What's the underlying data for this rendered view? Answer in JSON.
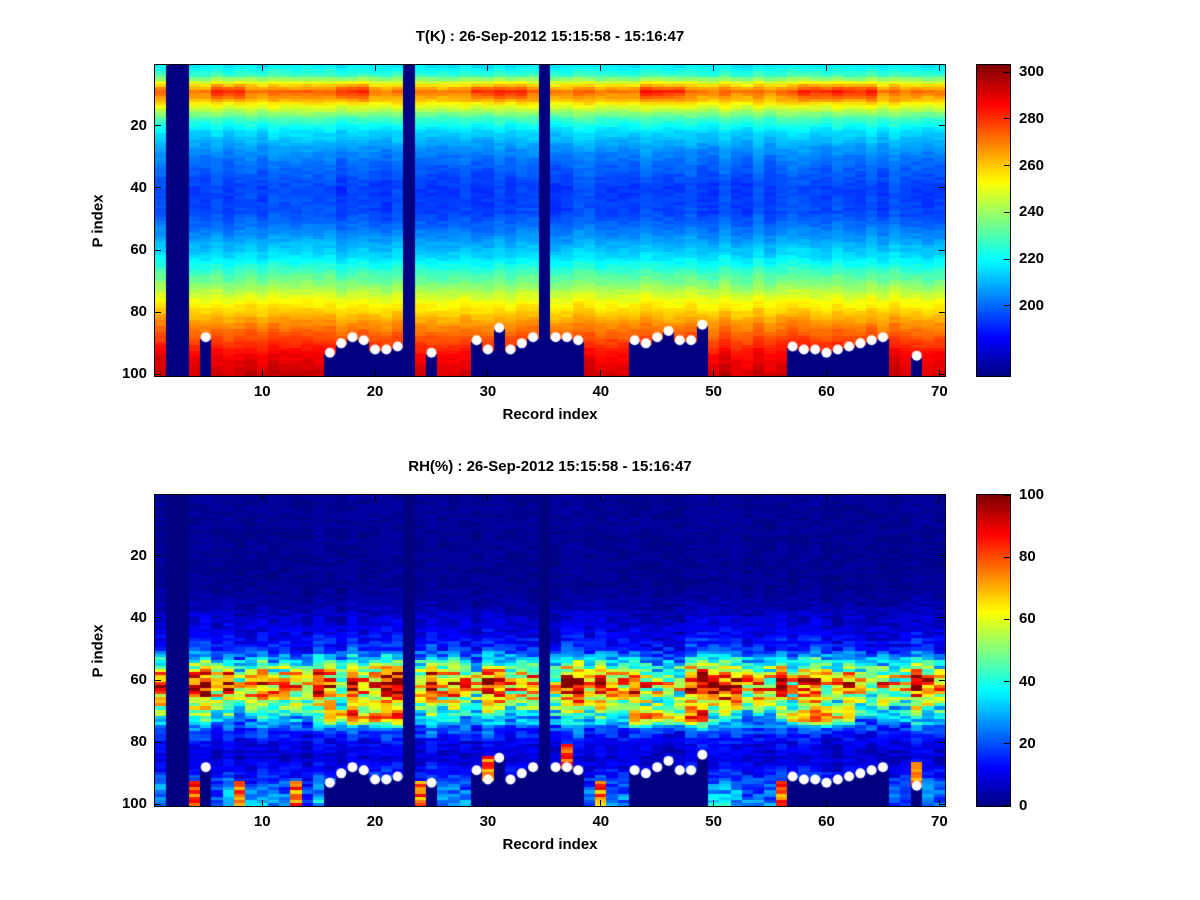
{
  "figure": {
    "background": "#ffffff"
  },
  "style": {
    "marker_color": "#ffffff",
    "axis_color": "#000000",
    "colormap_name": "jet"
  },
  "chart_data": [
    {
      "type": "heatmap",
      "field": "temperature",
      "title": "T(K) : 26-Sep-2012 15:15:58 - 15:16:47",
      "xlabel": "Record index",
      "ylabel": "P index",
      "x_range": [
        0.5,
        70.5
      ],
      "y_range": [
        0.5,
        100.5
      ],
      "y_reversed": true,
      "grid": false,
      "legend": "none",
      "x_ticks": [
        10,
        20,
        30,
        40,
        50,
        60,
        70
      ],
      "y_ticks": [
        20,
        40,
        60,
        80,
        100
      ],
      "colormap": "jet",
      "caxis": [
        170,
        303
      ],
      "colorbar_ticks": [
        200,
        220,
        240,
        260,
        280,
        300
      ],
      "n_records": 70,
      "n_levels": 100,
      "fill_value": 170,
      "missing_records": [
        2,
        3,
        23,
        35
      ],
      "profile": {
        "p": [
          1,
          4,
          7,
          9,
          12,
          15,
          18,
          22,
          27,
          33,
          40,
          48,
          55,
          62,
          70,
          76,
          82,
          88,
          94,
          100
        ],
        "value": [
          218,
          228,
          258,
          272,
          262,
          243,
          228,
          216,
          207,
          200,
          195,
          196,
          205,
          216,
          235,
          251,
          264,
          276,
          287,
          293
        ]
      },
      "warm_band": {
        "p_center": 9,
        "p_width": 3,
        "boost": 10,
        "records": [
          6,
          7,
          8,
          17,
          18,
          19,
          29,
          30,
          31,
          32,
          33,
          44,
          45,
          46,
          47,
          58,
          59,
          60,
          61,
          62,
          63,
          64
        ]
      },
      "surface_markers": {
        "records": [
          5,
          16,
          17,
          18,
          19,
          20,
          21,
          22,
          25,
          29,
          30,
          31,
          32,
          33,
          34,
          36,
          37,
          38,
          43,
          44,
          45,
          46,
          47,
          48,
          49,
          57,
          58,
          59,
          60,
          61,
          62,
          63,
          64,
          65,
          68
        ],
        "p": [
          88,
          93,
          90,
          88,
          89,
          92,
          92,
          91,
          93,
          89,
          92,
          85,
          92,
          90,
          88,
          88,
          88,
          89,
          89,
          90,
          88,
          86,
          89,
          89,
          84,
          91,
          92,
          92,
          93,
          92,
          91,
          90,
          89,
          88,
          94
        ]
      }
    },
    {
      "type": "heatmap",
      "field": "humidity",
      "title": "RH(%) : 26-Sep-2012 15:15:58 - 15:16:47",
      "xlabel": "Record index",
      "ylabel": "P index",
      "x_range": [
        0.5,
        70.5
      ],
      "y_range": [
        0.5,
        100.5
      ],
      "y_reversed": true,
      "grid": false,
      "legend": "none",
      "x_ticks": [
        10,
        20,
        30,
        40,
        50,
        60,
        70
      ],
      "y_ticks": [
        20,
        40,
        60,
        80,
        100
      ],
      "colormap": "jet",
      "caxis": [
        0,
        100
      ],
      "colorbar_ticks": [
        0,
        20,
        40,
        60,
        80,
        100
      ],
      "n_records": 70,
      "n_levels": 100,
      "fill_value": 0,
      "missing_records": [
        2,
        3,
        23,
        35
      ],
      "profile": {
        "p": [
          1,
          30,
          36,
          40,
          45,
          50,
          54,
          58,
          61,
          64,
          68,
          72,
          76,
          80,
          85,
          90,
          95,
          100
        ],
        "value": [
          2,
          2,
          4,
          7,
          10,
          16,
          36,
          62,
          78,
          70,
          50,
          34,
          20,
          11,
          8,
          14,
          22,
          28
        ]
      },
      "secondary_band": {
        "p_center": 72,
        "p_width": 2.5,
        "boost": 40,
        "records": [
          16,
          17,
          18,
          19,
          20,
          21,
          22,
          43,
          44,
          45,
          46,
          47,
          48,
          49,
          57,
          58,
          59,
          60,
          61,
          62
        ]
      },
      "wet_surface": {
        "records": [
          4,
          8,
          13,
          24,
          30,
          37,
          40,
          56,
          68
        ],
        "boost": 60,
        "depth": 7
      },
      "surface_markers": {
        "records": [
          5,
          16,
          17,
          18,
          19,
          20,
          21,
          22,
          25,
          29,
          30,
          31,
          32,
          33,
          34,
          36,
          37,
          38,
          43,
          44,
          45,
          46,
          47,
          48,
          49,
          57,
          58,
          59,
          60,
          61,
          62,
          63,
          64,
          65,
          68
        ],
        "p": [
          88,
          93,
          90,
          88,
          89,
          92,
          92,
          91,
          93,
          89,
          92,
          85,
          92,
          90,
          88,
          88,
          88,
          89,
          89,
          90,
          88,
          86,
          89,
          89,
          84,
          91,
          92,
          92,
          93,
          92,
          91,
          90,
          89,
          88,
          94
        ]
      }
    }
  ]
}
